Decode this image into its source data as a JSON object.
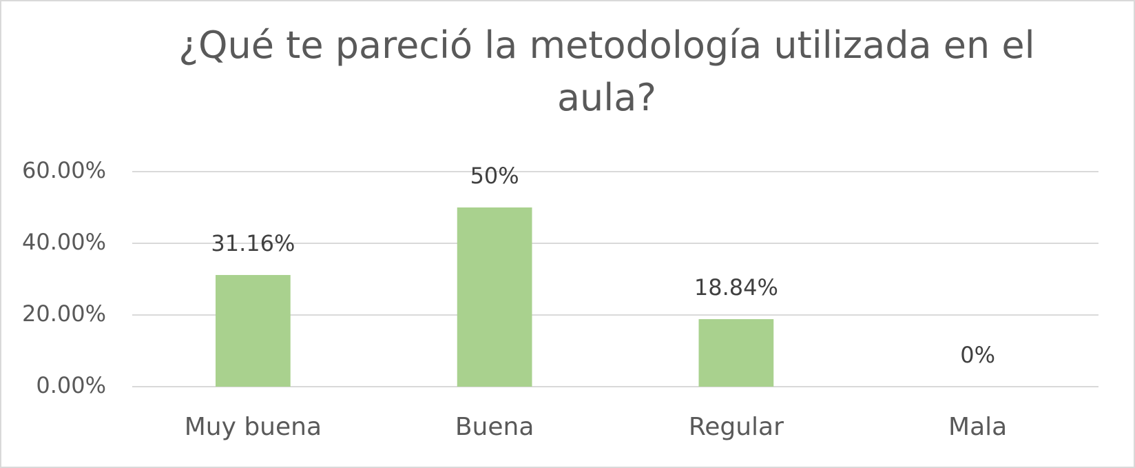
{
  "chart_data": {
    "type": "bar",
    "title": "¿Qué te pareció la metodología utilizada en el aula?",
    "categories": [
      "Muy buena",
      "Buena",
      "Regular",
      "Mala"
    ],
    "values": [
      31.16,
      50,
      18.84,
      0
    ],
    "value_labels": [
      "31.16%",
      "50%",
      "18.84%",
      "0%"
    ],
    "color": "#a9d18e",
    "ylim": [
      0,
      60
    ],
    "yticks": [
      {
        "value": 0,
        "label": "0.00%"
      },
      {
        "value": 20,
        "label": "20.00%"
      },
      {
        "value": 40,
        "label": "40.00%"
      },
      {
        "value": 60,
        "label": "60.00%"
      }
    ],
    "grid": true
  }
}
